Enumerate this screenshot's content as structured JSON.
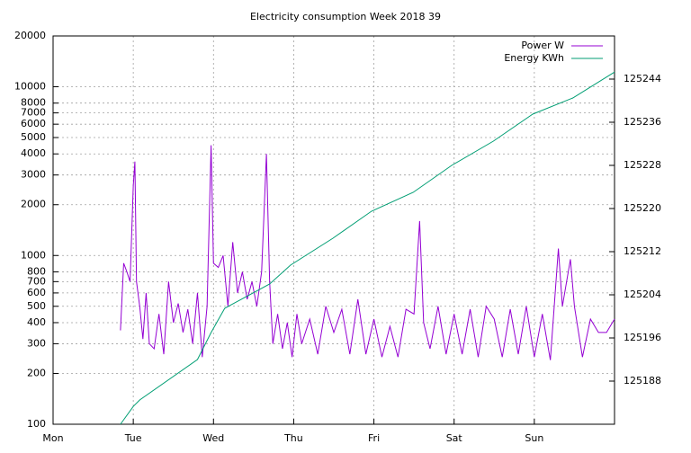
{
  "chart_data": {
    "type": "line",
    "title": "Electricity consumption Week 2018 39",
    "x": [
      0.84,
      0.88,
      0.92,
      0.96,
      1.0,
      1.02,
      1.04,
      1.08,
      1.12,
      1.16,
      1.2,
      1.26,
      1.32,
      1.38,
      1.44,
      1.5,
      1.56,
      1.62,
      1.68,
      1.74,
      1.8,
      1.86,
      1.92,
      1.97,
      2.0,
      2.06,
      2.12,
      2.18,
      2.24,
      2.3,
      2.36,
      2.42,
      2.48,
      2.54,
      2.6,
      2.66,
      2.7,
      2.74,
      2.8,
      2.86,
      2.92,
      2.98,
      3.04,
      3.1,
      3.2,
      3.3,
      3.4,
      3.5,
      3.6,
      3.7,
      3.8,
      3.9,
      4.0,
      4.1,
      4.2,
      4.3,
      4.4,
      4.5,
      4.57,
      4.62,
      4.7,
      4.8,
      4.9,
      5.0,
      5.1,
      5.2,
      5.3,
      5.4,
      5.5,
      5.6,
      5.7,
      5.8,
      5.9,
      6.0,
      6.1,
      6.2,
      6.3,
      6.35,
      6.45,
      6.5,
      6.6,
      6.7,
      6.8,
      6.9,
      7.0
    ],
    "series": [
      {
        "name": "Power W",
        "color": "#9400d3",
        "values": [
          360,
          900,
          800,
          700,
          2600,
          3600,
          700,
          500,
          320,
          600,
          300,
          280,
          450,
          260,
          700,
          400,
          520,
          350,
          480,
          300,
          600,
          250,
          500,
          4500,
          900,
          850,
          1000,
          500,
          1200,
          600,
          800,
          550,
          700,
          500,
          800,
          4000,
          700,
          300,
          450,
          280,
          400,
          250,
          450,
          300,
          420,
          260,
          500,
          350,
          480,
          260,
          550,
          260,
          420,
          250,
          380,
          250,
          480,
          450,
          1600,
          400,
          280,
          500,
          260,
          450,
          260,
          480,
          250,
          500,
          420,
          250,
          480,
          260,
          500,
          250,
          450,
          240,
          1100,
          500,
          950,
          500,
          250,
          420,
          350,
          350,
          420
        ]
      },
      {
        "name": "Energy KWh",
        "color": "#009e73",
        "axis": "y2",
        "x": [
          0.84,
          1.0,
          1.08,
          1.8,
          1.97,
          2.14,
          2.7,
          2.96,
          3.49,
          3.97,
          4.49,
          4.97,
          5.49,
          5.98,
          6.48,
          7.0
        ],
        "values": [
          125180,
          125183.3,
          125184.5,
          125192,
          125197,
          125201.5,
          125206,
          125209.5,
          125214.5,
          125219.5,
          125223,
          125228,
          125232.5,
          125237.5,
          125240.5,
          125245.3
        ]
      }
    ],
    "xlim": [
      0,
      7
    ],
    "xticks": [
      {
        "value": 0,
        "label": "Mon"
      },
      {
        "value": 1,
        "label": "Tue"
      },
      {
        "value": 2,
        "label": "Wed"
      },
      {
        "value": 3,
        "label": "Thu"
      },
      {
        "value": 4,
        "label": "Fri"
      },
      {
        "value": 5,
        "label": "Sat"
      },
      {
        "value": 6,
        "label": "Sun"
      }
    ],
    "ylim": [
      100,
      20000
    ],
    "log_y": true,
    "yticks": [
      100,
      200,
      300,
      400,
      500,
      600,
      700,
      800,
      1000,
      2000,
      3000,
      4000,
      5000,
      6000,
      7000,
      8000,
      10000,
      20000
    ],
    "y2lim": [
      125180,
      125252
    ],
    "y2ticks": [
      125188,
      125196,
      125204,
      125212,
      125220,
      125228,
      125236,
      125244
    ],
    "grid": true,
    "legend": "top-right"
  }
}
